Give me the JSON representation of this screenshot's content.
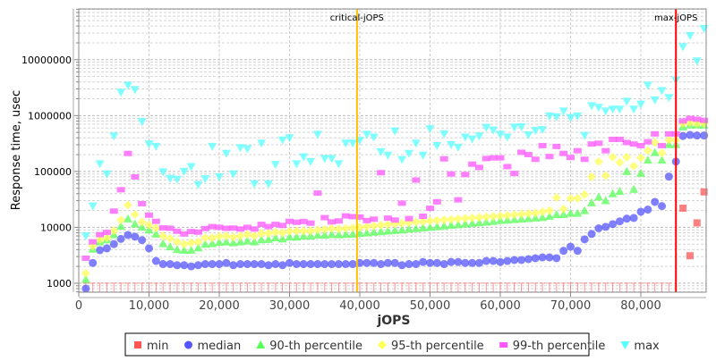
{
  "chart_data": {
    "type": "scatter",
    "title": "",
    "xlabel": "jOPS",
    "ylabel": "Response time, usec",
    "xlim": [
      0,
      89300
    ],
    "ylim": [
      690,
      81000000
    ],
    "yscale": "log",
    "grid": true,
    "legend_position": "bottom",
    "x_ticks": [
      0,
      10000,
      20000,
      30000,
      40000,
      50000,
      60000,
      70000,
      80000
    ],
    "x_tick_labels": [
      "0",
      "10,000",
      "20,000",
      "30,000",
      "40,000",
      "50,000",
      "60,000",
      "70,000",
      "80,000"
    ],
    "y_ticks": [
      1000,
      10000,
      100000,
      1000000,
      10000000
    ],
    "y_tick_labels": [
      "1000",
      "10000",
      "100000",
      "1000000",
      "10000000"
    ],
    "markers": [
      {
        "label": "critical-jOPS",
        "x": 39600,
        "color": "#ffc000"
      },
      {
        "label": "max-jOPS",
        "x": 85000,
        "color": "#ff0000"
      }
    ],
    "x_step": 1000,
    "x_start": 1000,
    "series": [
      {
        "name": "min",
        "color": "#ff5555",
        "shape": "square",
        "values": [
          1000,
          1000,
          1000,
          1000,
          1000,
          1000,
          1000,
          1000,
          1000,
          1000,
          1000,
          1000,
          1000,
          1000,
          1000,
          1000,
          1000,
          1000,
          1000,
          1000,
          1000,
          1000,
          1000,
          1000,
          1000,
          1000,
          1000,
          1000,
          1000,
          1000,
          1000,
          1000,
          1000,
          1000,
          1000,
          1000,
          1000,
          1000,
          1000,
          1000,
          1000,
          1000,
          1000,
          1000,
          1000,
          1000,
          1000,
          1000,
          1000,
          1000,
          1000,
          1000,
          1000,
          1000,
          1000,
          1000,
          1000,
          1000,
          1000,
          1000,
          1000,
          1000,
          1000,
          1000,
          1000,
          1000,
          1000,
          1000,
          1000,
          1000,
          1000,
          1000,
          1000,
          1000,
          1000,
          1000,
          1000,
          1000,
          1000,
          1000,
          1000,
          1000,
          1000,
          1000,
          null,
          22000,
          3100,
          12000,
          43000
        ]
      },
      {
        "name": "median",
        "color": "#5555ff",
        "shape": "circle",
        "values": [
          800,
          2300,
          3900,
          4200,
          5000,
          6200,
          7300,
          6800,
          5900,
          4200,
          2500,
          2200,
          2200,
          2100,
          2100,
          2000,
          2100,
          2200,
          2200,
          2200,
          2300,
          2100,
          2200,
          2200,
          2200,
          2200,
          2100,
          2200,
          2100,
          2300,
          2200,
          2200,
          2200,
          2200,
          2200,
          2200,
          2200,
          2200,
          2200,
          2300,
          2300,
          2300,
          2200,
          2300,
          2300,
          2100,
          2200,
          2200,
          2400,
          2300,
          2300,
          2200,
          2400,
          2400,
          2300,
          2300,
          2300,
          2500,
          2500,
          2400,
          2500,
          2600,
          2600,
          2700,
          2800,
          2900,
          2900,
          2800,
          3800,
          4500,
          3800,
          6100,
          7600,
          9600,
          10200,
          11400,
          12800,
          14300,
          14700,
          19000,
          20800,
          28500,
          24000,
          81000,
          150000,
          430000,
          450000,
          440000,
          440000
        ]
      },
      {
        "name": "90-th percentile",
        "color": "#55ff55",
        "shape": "triangle-up",
        "values": [
          1170,
          4100,
          5500,
          6000,
          7400,
          10500,
          14200,
          11500,
          10100,
          9000,
          7600,
          5100,
          4500,
          4000,
          3900,
          3900,
          4300,
          5000,
          5100,
          5400,
          5500,
          5300,
          5500,
          5700,
          5500,
          6000,
          6100,
          6500,
          6200,
          6700,
          6700,
          7000,
          7000,
          7300,
          7300,
          7500,
          7400,
          7500,
          7600,
          7800,
          8000,
          8200,
          8400,
          8600,
          8800,
          9000,
          9300,
          9500,
          9800,
          10000,
          10300,
          10600,
          10900,
          11200,
          11500,
          11800,
          12100,
          12400,
          12800,
          13300,
          13500,
          13800,
          14100,
          14400,
          14700,
          15000,
          15700,
          17000,
          17000,
          17900,
          17900,
          20000,
          27500,
          35000,
          30000,
          40000,
          44000,
          100000,
          48000,
          93000,
          160000,
          218000,
          160000,
          305000,
          305000,
          630000,
          680000,
          680000,
          680000
        ]
      },
      {
        "name": "95-th percentile",
        "color": "#ffff55",
        "shape": "diamond",
        "values": [
          1500,
          4600,
          6000,
          6500,
          8700,
          13500,
          25000,
          17000,
          12500,
          11000,
          9700,
          7000,
          6300,
          5500,
          5000,
          5300,
          5500,
          6500,
          6500,
          6900,
          7000,
          6700,
          7000,
          7500,
          7000,
          7800,
          7800,
          8200,
          8000,
          8500,
          8600,
          8600,
          8600,
          9000,
          9200,
          9500,
          9300,
          9600,
          9800,
          10000,
          10300,
          10600,
          10900,
          11200,
          11500,
          11800,
          12100,
          12400,
          12700,
          13000,
          13300,
          13600,
          13900,
          14200,
          14500,
          14800,
          15100,
          15400,
          15700,
          16000,
          16400,
          16800,
          17200,
          17600,
          18000,
          19000,
          20000,
          34000,
          21300,
          33000,
          33000,
          38500,
          80000,
          150000,
          84000,
          180000,
          145000,
          180000,
          125000,
          175000,
          235000,
          330000,
          215000,
          365000,
          365000,
          720000,
          740000,
          720000,
          720000
        ]
      },
      {
        "name": "99-th percentile",
        "color": "#ff55ff",
        "shape": "rect",
        "values": [
          2800,
          5500,
          7400,
          8100,
          19500,
          47000,
          210000,
          80000,
          26500,
          16500,
          12800,
          9800,
          9600,
          8500,
          7600,
          8400,
          8200,
          9500,
          10300,
          10000,
          9600,
          9700,
          9300,
          10000,
          9300,
          11300,
          10300,
          11300,
          10800,
          12800,
          12300,
          12700,
          11900,
          41000,
          14900,
          12500,
          13000,
          16000,
          15500,
          15300,
          13200,
          14000,
          95000,
          14600,
          13500,
          27000,
          14300,
          70000,
          15800,
          21900,
          28600,
          168000,
          90000,
          31000,
          88000,
          135000,
          118000,
          170000,
          175000,
          175000,
          122000,
          92000,
          220000,
          200000,
          165000,
          290000,
          185000,
          280000,
          210000,
          178000,
          235000,
          165000,
          310000,
          320000,
          235000,
          375000,
          375000,
          330000,
          310000,
          290000,
          340000,
          470000,
          290000,
          470000,
          470000,
          800000,
          890000,
          860000,
          820000
        ]
      },
      {
        "name": "max",
        "color": "#55ffff",
        "shape": "triangle-down",
        "values": [
          7000,
          24000,
          137000,
          90000,
          430000,
          2600000,
          3500000,
          2900000,
          780000,
          310000,
          280000,
          98000,
          75000,
          72000,
          100000,
          122000,
          58000,
          74000,
          280000,
          80000,
          210000,
          90000,
          265000,
          255000,
          60000,
          320000,
          60000,
          133000,
          365000,
          400000,
          137000,
          182000,
          150000,
          460000,
          170000,
          170000,
          137000,
          320000,
          320000,
          360000,
          460000,
          410000,
          225000,
          195000,
          530000,
          163000,
          210000,
          320000,
          195000,
          580000,
          290000,
          470000,
          300000,
          270000,
          410000,
          380000,
          430000,
          610000,
          550000,
          460000,
          410000,
          620000,
          630000,
          450000,
          540000,
          560000,
          980000,
          950000,
          1200000,
          920000,
          980000,
          440000,
          1500000,
          1400000,
          1200000,
          1300000,
          1300000,
          1800000,
          1300000,
          1600000,
          3500000,
          1900000,
          2800000,
          2100000,
          4300000,
          17000000,
          27000000,
          9500000,
          36000000
        ]
      }
    ]
  }
}
